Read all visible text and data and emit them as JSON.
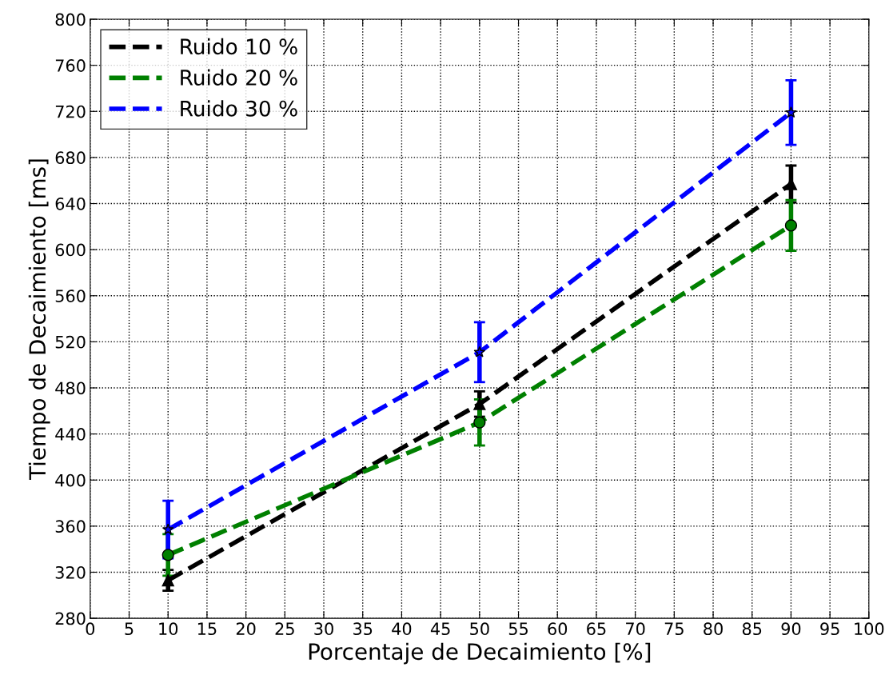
{
  "chart_data": {
    "type": "line",
    "xlabel": "Porcentaje de Decaimiento [%]",
    "ylabel": "Tiempo de Decaimiento [ms]",
    "x": [
      10,
      50,
      90
    ],
    "series": [
      {
        "name": "Ruido 10 %",
        "color": "#000000",
        "marker": "triangle",
        "values": [
          313,
          466,
          657
        ],
        "errors": [
          9,
          11,
          16
        ]
      },
      {
        "name": "Ruido 20 %",
        "color": "#008000",
        "marker": "circle",
        "values": [
          335,
          450,
          621
        ],
        "errors": [
          18,
          20,
          22
        ]
      },
      {
        "name": "Ruido 30 %",
        "color": "#0000ff",
        "marker": "star",
        "values": [
          357,
          511,
          719
        ],
        "errors": [
          25,
          26,
          28
        ]
      }
    ],
    "xlim": [
      0,
      100
    ],
    "xticks": [
      0,
      5,
      10,
      15,
      20,
      25,
      30,
      35,
      40,
      45,
      50,
      55,
      60,
      65,
      70,
      75,
      80,
      85,
      90,
      95,
      100
    ],
    "ylim": [
      280,
      800
    ],
    "yticks": [
      280,
      320,
      360,
      400,
      440,
      480,
      520,
      560,
      600,
      640,
      680,
      720,
      760,
      800
    ],
    "grid": true,
    "legend": "top left",
    "line_style": "dashed"
  }
}
